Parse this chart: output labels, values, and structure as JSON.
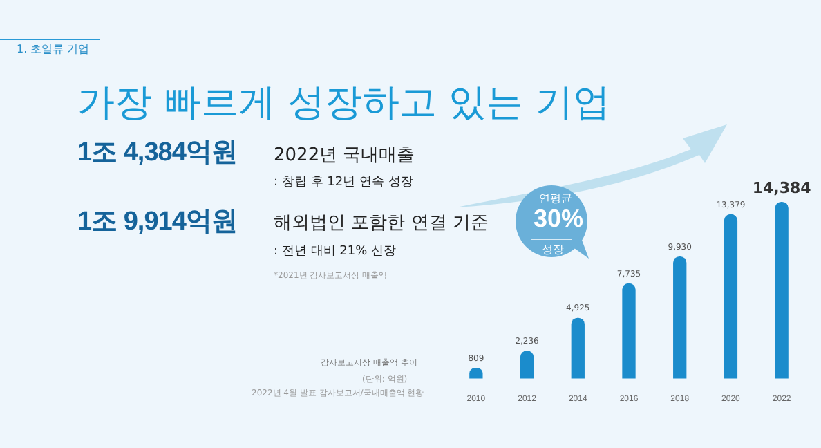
{
  "chart_data": {
    "type": "bar",
    "title": "가장 빠르게 성장하고 있는 기업",
    "subtitle": "1. 초일류 기업",
    "categories": [
      "2010",
      "2012",
      "2014",
      "2016",
      "2018",
      "2020",
      "2022"
    ],
    "values": [
      809,
      2236,
      4925,
      7735,
      9930,
      13379,
      14384
    ],
    "color": "#1b8ccc",
    "value_labels": [
      "809",
      "2,236",
      "4,925",
      "7,735",
      "9,930",
      "13,379",
      "14,384"
    ],
    "grid": false,
    "legend": false,
    "tick_labels": "x",
    "annotations": [
      "1조 4,384억원",
      "2022년 국내매출",
      ": 창립 후 12년 연속 성장",
      "1조 9,914억원",
      "해외법인 포함한 연결 기준",
      ": 전년 대비 21% 신장",
      "*2021년 감사보고서상 매출액",
      "감사보고서상 매출액 추이",
      "(단위: 억원)",
      "2022년 4월 발표 감사보고서/국내매출액 현황",
      "연평균",
      "30%",
      "성장"
    ]
  }
}
